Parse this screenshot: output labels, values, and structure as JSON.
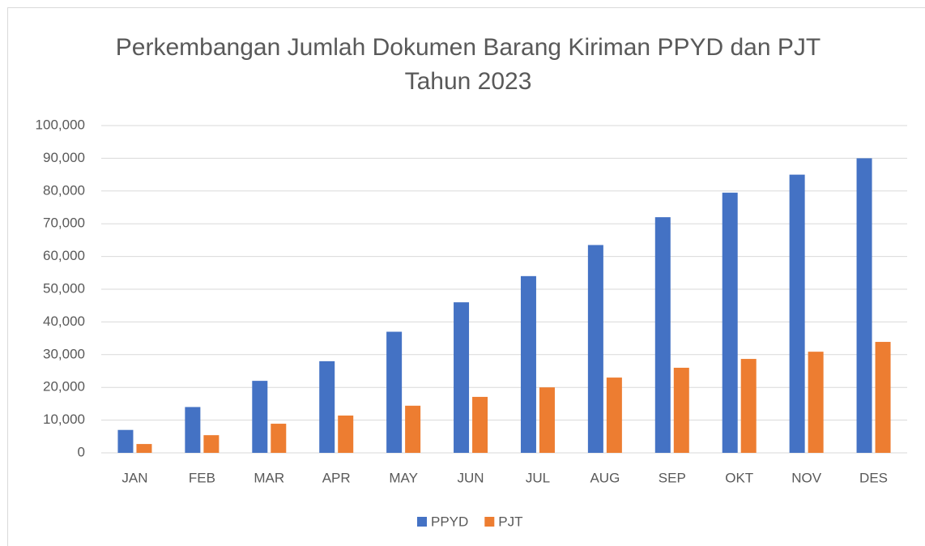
{
  "chart_data": {
    "type": "bar",
    "title": "Perkembangan Jumlah Dokumen Barang Kiriman PPYD dan PJT Tahun 2023",
    "categories": [
      "JAN",
      "FEB",
      "MAR",
      "APR",
      "MAY",
      "JUN",
      "JUL",
      "AUG",
      "SEP",
      "OKT",
      "NOV",
      "DES"
    ],
    "series": [
      {
        "name": "PPYD",
        "color": "#4472c4",
        "values": [
          7000,
          14000,
          22000,
          28000,
          37000,
          46000,
          54000,
          63500,
          72000,
          79500,
          85000,
          90000
        ]
      },
      {
        "name": "PJT",
        "color": "#ed7d31",
        "values": [
          2700,
          5400,
          8900,
          11400,
          14400,
          17100,
          20000,
          23000,
          26000,
          28700,
          30900,
          33900
        ]
      }
    ],
    "ylim": [
      0,
      100000
    ],
    "yticks": [
      0,
      {
        "value": 10000,
        "label": "10,000"
      },
      {
        "value": 20000,
        "label": "20,000"
      },
      {
        "value": 30000,
        "label": "30,000"
      },
      {
        "value": 40000,
        "label": "40,000"
      },
      {
        "value": 50000,
        "label": "50,000"
      },
      {
        "value": 60000,
        "label": "60,000"
      },
      {
        "value": 70000,
        "label": "70,000"
      },
      {
        "value": 80000,
        "label": "80,000"
      },
      {
        "value": 90000,
        "label": "90,000"
      },
      {
        "value": 100000,
        "label": "100,000"
      }
    ],
    "grid": true,
    "legend": "bottom"
  }
}
